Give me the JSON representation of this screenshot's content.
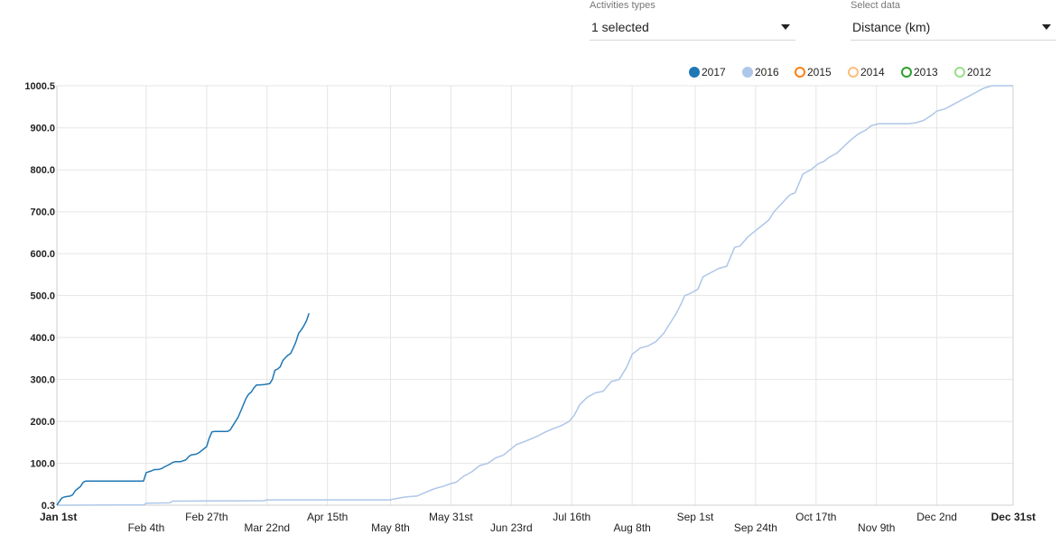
{
  "controls": {
    "activities": {
      "label": "Activities types",
      "value": "1 selected"
    },
    "select_data": {
      "label": "Select data",
      "value": "Distance (km)"
    }
  },
  "chart_data": {
    "type": "line",
    "title": "",
    "xlabel": "",
    "ylabel": "",
    "x_unit": "day of year",
    "xlim": [
      1,
      365
    ],
    "ylim": [
      0.3,
      1000.5
    ],
    "y_ticks": [
      {
        "value": 0.3,
        "label": "0.3"
      },
      {
        "value": 100,
        "label": "100.0"
      },
      {
        "value": 200,
        "label": "200.0"
      },
      {
        "value": 300,
        "label": "300.0"
      },
      {
        "value": 400,
        "label": "400.0"
      },
      {
        "value": 500,
        "label": "500.0"
      },
      {
        "value": 600,
        "label": "600.0"
      },
      {
        "value": 700,
        "label": "700.0"
      },
      {
        "value": 800,
        "label": "800.0"
      },
      {
        "value": 900,
        "label": "900.0"
      },
      {
        "value": 1000.5,
        "label": "1000.5"
      }
    ],
    "x_ticks": [
      {
        "day": 1,
        "label": "Jan 1st",
        "row": 0,
        "bold": true
      },
      {
        "day": 35,
        "label": "Feb 4th",
        "row": 1,
        "bold": false
      },
      {
        "day": 58,
        "label": "Feb 27th",
        "row": 0,
        "bold": false
      },
      {
        "day": 81,
        "label": "Mar 22nd",
        "row": 1,
        "bold": false
      },
      {
        "day": 104,
        "label": "Apr 15th",
        "row": 0,
        "bold": false
      },
      {
        "day": 128,
        "label": "May 8th",
        "row": 1,
        "bold": false
      },
      {
        "day": 151,
        "label": "May 31st",
        "row": 0,
        "bold": false
      },
      {
        "day": 174,
        "label": "Jun 23rd",
        "row": 1,
        "bold": false
      },
      {
        "day": 197,
        "label": "Jul 16th",
        "row": 0,
        "bold": false
      },
      {
        "day": 220,
        "label": "Aug 8th",
        "row": 1,
        "bold": false
      },
      {
        "day": 244,
        "label": "Sep 1st",
        "row": 0,
        "bold": false
      },
      {
        "day": 267,
        "label": "Sep 24th",
        "row": 1,
        "bold": false
      },
      {
        "day": 290,
        "label": "Oct 17th",
        "row": 0,
        "bold": false
      },
      {
        "day": 313,
        "label": "Nov 9th",
        "row": 1,
        "bold": false
      },
      {
        "day": 336,
        "label": "Dec 2nd",
        "row": 0,
        "bold": false
      },
      {
        "day": 365,
        "label": "Dec 31st",
        "row": 0,
        "bold": true
      }
    ],
    "legend": [
      {
        "name": "2017",
        "color": "#1f77b4",
        "filled": true
      },
      {
        "name": "2016",
        "color": "#aec7e8",
        "filled": true
      },
      {
        "name": "2015",
        "color": "#ff7f0e",
        "filled": false
      },
      {
        "name": "2014",
        "color": "#ffbb78",
        "filled": false
      },
      {
        "name": "2013",
        "color": "#2ca02c",
        "filled": false
      },
      {
        "name": "2012",
        "color": "#98df8a",
        "filled": false
      }
    ],
    "legend_position": "top-right",
    "grid": true,
    "series": [
      {
        "name": "2017",
        "color": "#1f77b4",
        "x": [
          1,
          2,
          3,
          4,
          6,
          7,
          8,
          9,
          10,
          11,
          12,
          13,
          15,
          16,
          17,
          18,
          20,
          22,
          25,
          28,
          30,
          32,
          34,
          35,
          36,
          37,
          38,
          40,
          41,
          42,
          43,
          44,
          45,
          46,
          47,
          48,
          50,
          51,
          52,
          54,
          55,
          56,
          57,
          58,
          59,
          60,
          61,
          62,
          64,
          66,
          67,
          68,
          69,
          70,
          71,
          72,
          73,
          74,
          75,
          76,
          77,
          78,
          80,
          82,
          83,
          84,
          85,
          86,
          87,
          88,
          89,
          90,
          91,
          92,
          93,
          94,
          95,
          96,
          97
        ],
        "y": [
          0.3,
          10,
          18,
          20,
          22,
          25,
          35,
          40,
          45,
          55,
          58,
          58,
          58,
          58,
          58,
          58,
          58,
          58,
          58,
          58,
          58,
          58,
          58,
          78,
          80,
          82,
          85,
          86,
          88,
          92,
          95,
          98,
          102,
          104,
          104,
          104,
          108,
          115,
          120,
          122,
          125,
          130,
          135,
          140,
          160,
          175,
          176,
          176,
          176,
          176,
          180,
          190,
          200,
          210,
          225,
          240,
          255,
          265,
          270,
          280,
          287,
          287,
          288,
          290,
          300,
          322,
          325,
          330,
          345,
          352,
          358,
          362,
          375,
          390,
          410,
          418,
          428,
          440,
          458
        ]
      },
      {
        "name": "2016",
        "color": "#aec7e8",
        "x": [
          1,
          34,
          35,
          44,
          45,
          80,
          81,
          128,
          129,
          132,
          134,
          138,
          141,
          144,
          146,
          148,
          151,
          153,
          156,
          159,
          162,
          165,
          168,
          171,
          173,
          176,
          179,
          182,
          184,
          187,
          190,
          193,
          196,
          198,
          200,
          203,
          206,
          209,
          212,
          215,
          218,
          220,
          223,
          226,
          229,
          232,
          235,
          237,
          239,
          240,
          242,
          245,
          247,
          250,
          253,
          256,
          259,
          261,
          262,
          264,
          266,
          269,
          272,
          274,
          277,
          280,
          282,
          285,
          288,
          291,
          293,
          295,
          298,
          301,
          303,
          306,
          309,
          311,
          314,
          317,
          320,
          322,
          325,
          328,
          331,
          334,
          336,
          339,
          342,
          345,
          348,
          351,
          354,
          357,
          360,
          363,
          365
        ],
        "y": [
          0.3,
          1,
          5,
          6,
          10,
          11,
          13,
          13,
          15,
          18,
          20,
          22,
          30,
          38,
          42,
          45,
          52,
          55,
          70,
          80,
          95,
          100,
          113,
          120,
          130,
          145,
          152,
          160,
          165,
          175,
          183,
          190,
          200,
          215,
          240,
          258,
          268,
          272,
          295,
          300,
          330,
          360,
          375,
          380,
          390,
          410,
          440,
          460,
          485,
          500,
          505,
          515,
          545,
          555,
          565,
          570,
          615,
          618,
          625,
          640,
          650,
          665,
          680,
          700,
          720,
          740,
          745,
          790,
          800,
          815,
          820,
          830,
          840,
          858,
          870,
          885,
          895,
          905,
          910,
          910,
          910,
          910,
          910,
          912,
          918,
          930,
          940,
          945,
          955,
          965,
          975,
          985,
          995,
          1000.5,
          1000.5,
          1000.5,
          1000.5
        ]
      }
    ]
  }
}
